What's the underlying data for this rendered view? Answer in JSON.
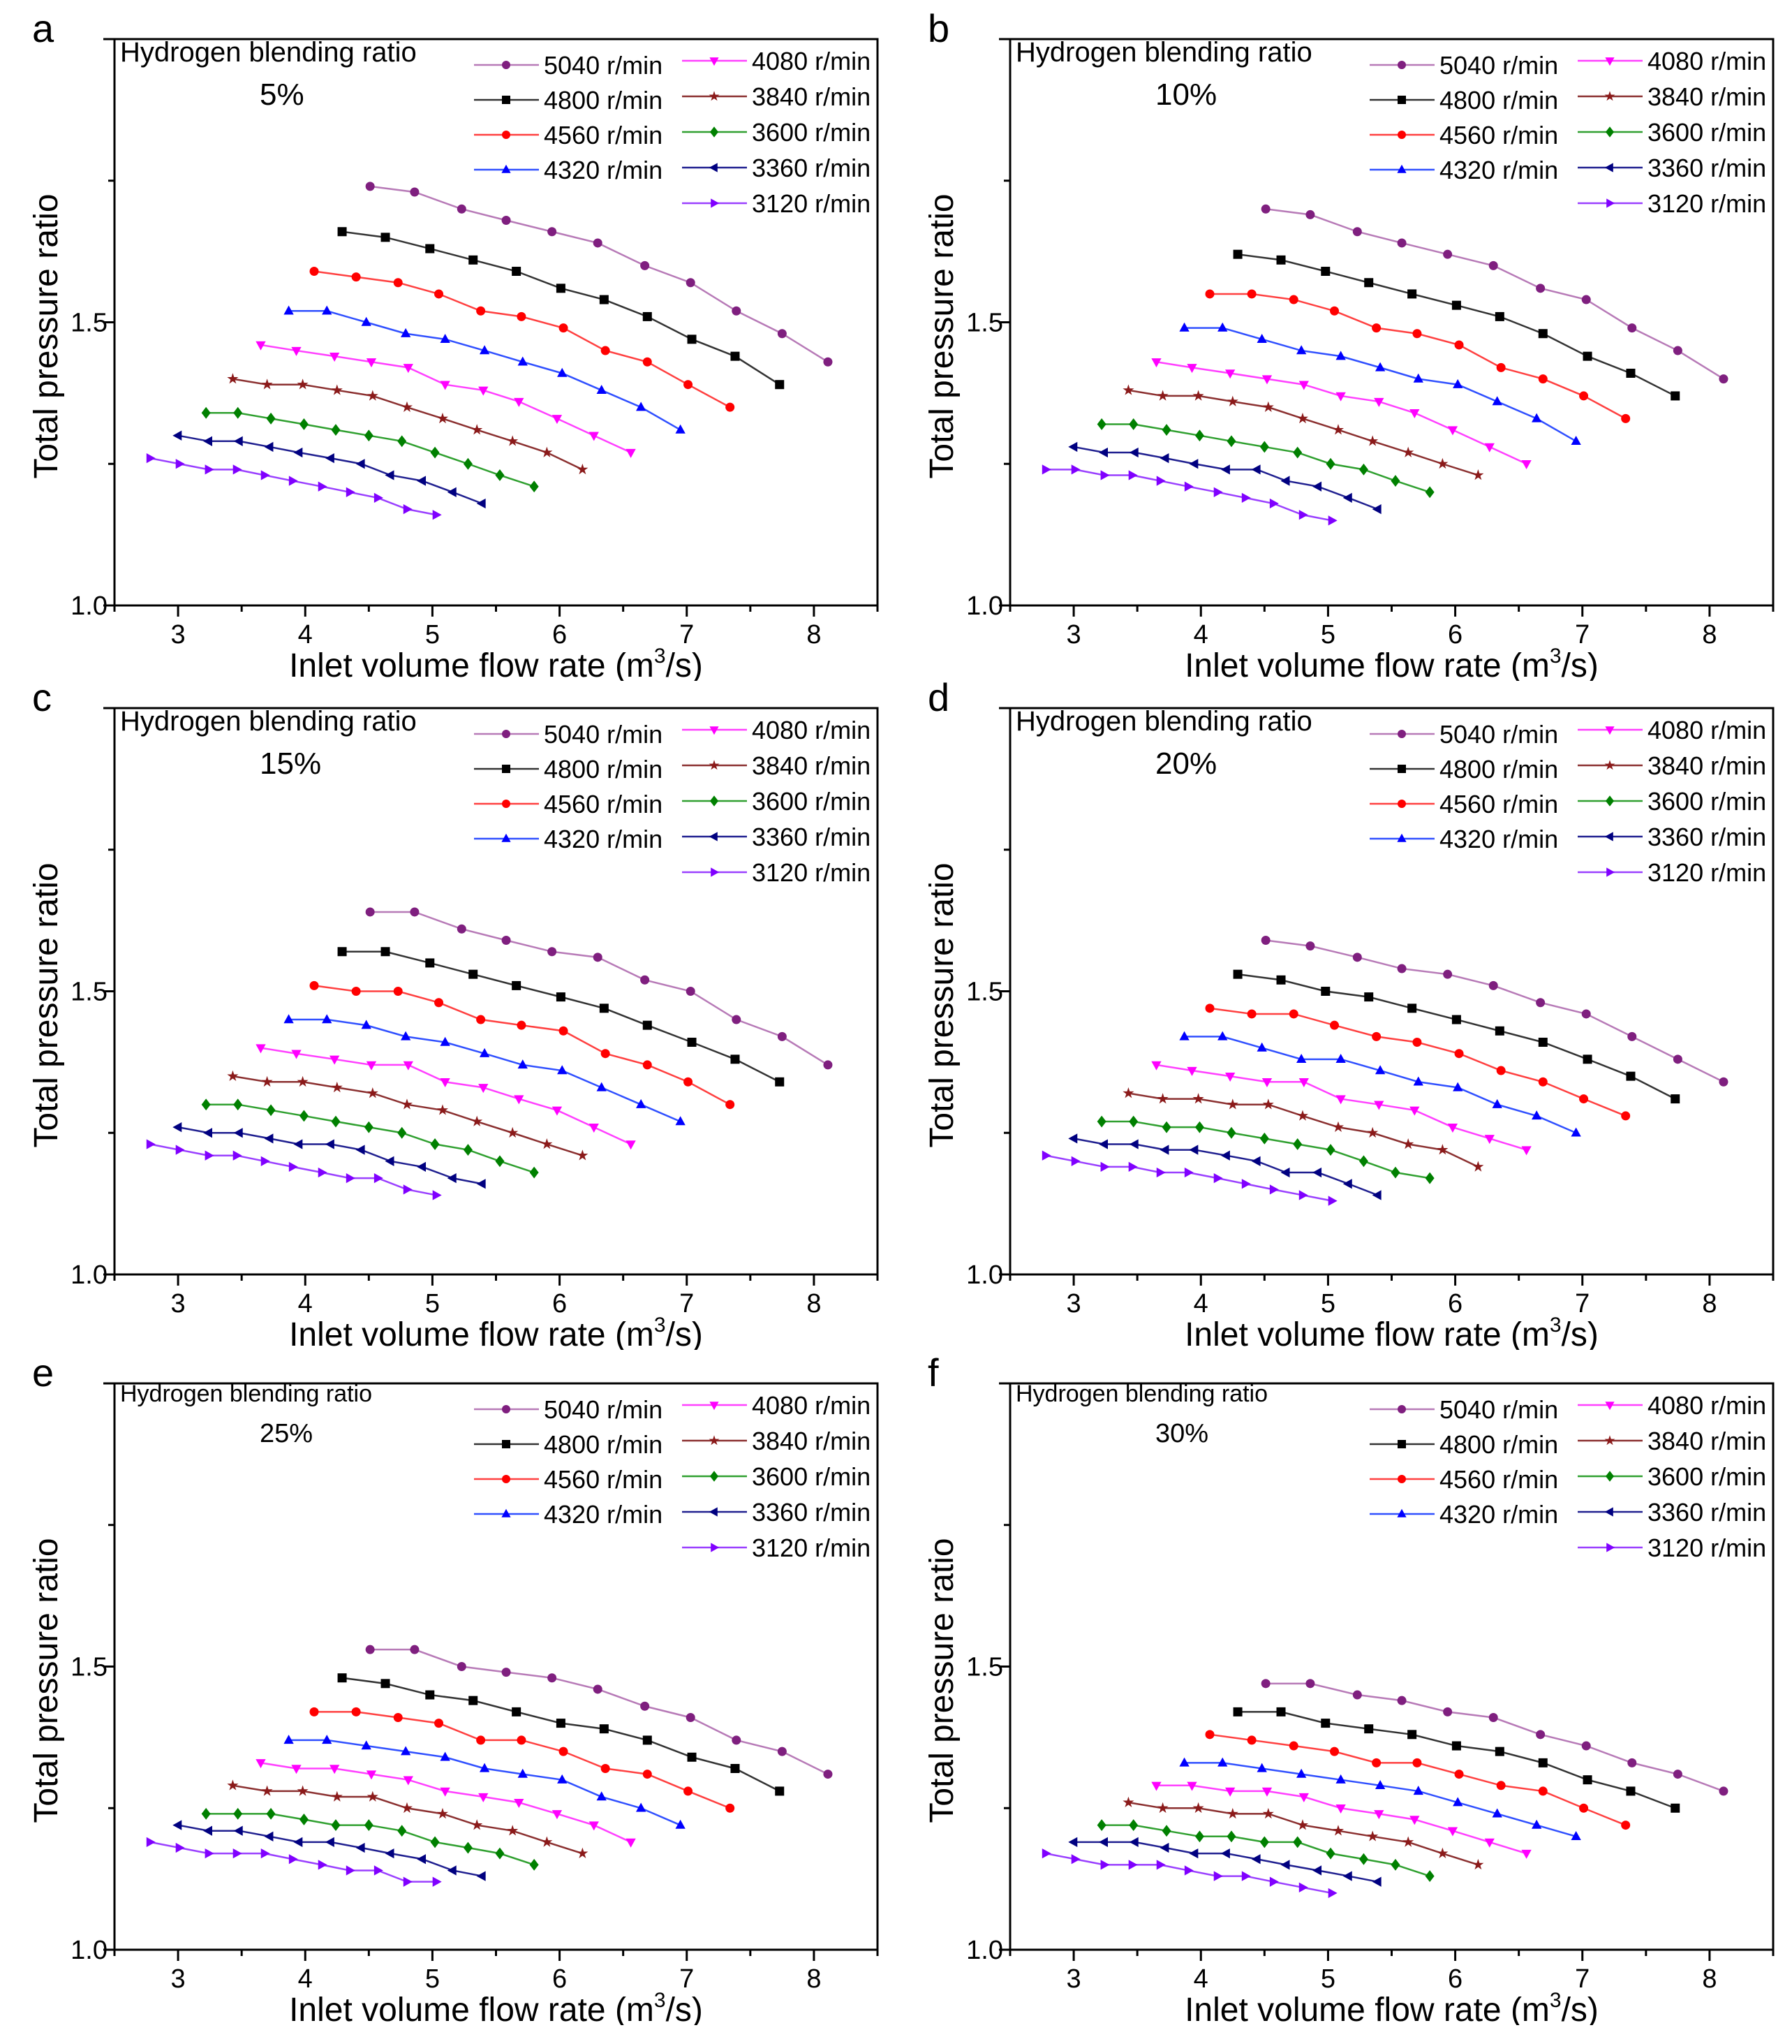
{
  "chart_data": {
    "type": "line",
    "xlabel_prefix": "Inlet volume flow rate (m",
    "xlabel_sup": "3",
    "xlabel_suffix": "/s)",
    "ylabel": "Total pressure ratio",
    "xlim": [
      2.5,
      8.5
    ],
    "ylim": [
      1.0,
      2.0
    ],
    "xticks": [
      "3",
      "4",
      "5",
      "6",
      "7",
      "8"
    ],
    "xtick_values": [
      3,
      4,
      5,
      6,
      7,
      8
    ],
    "yticks": [
      "1.0",
      "1.5"
    ],
    "ytick_values": [
      1.0,
      1.5
    ],
    "title_prefix": "Hydrogen blending ratio",
    "series_meta": [
      {
        "name": "5040 r/min",
        "color": "#7f1f7f",
        "line": "#b77ab7",
        "marker": "circle",
        "x": [
          4.51,
          4.86,
          5.23,
          5.58,
          5.94,
          6.3,
          6.67,
          7.03,
          7.39,
          7.75,
          8.11
        ]
      },
      {
        "name": "4800 r/min",
        "color": "#000000",
        "line": "#333333",
        "marker": "square",
        "x": [
          4.29,
          4.63,
          4.98,
          5.32,
          5.66,
          6.01,
          6.35,
          6.69,
          7.04,
          7.38,
          7.73
        ]
      },
      {
        "name": "4560 r/min",
        "color": "#ff0000",
        "line": "#ff4040",
        "marker": "circle",
        "x": [
          4.07,
          4.4,
          4.73,
          5.05,
          5.38,
          5.7,
          6.03,
          6.36,
          6.69,
          7.01,
          7.34
        ]
      },
      {
        "name": "4320 r/min",
        "color": "#0000ff",
        "line": "#3050ff",
        "marker": "triangle-up",
        "x": [
          3.87,
          4.17,
          4.48,
          4.79,
          5.1,
          5.41,
          5.71,
          6.02,
          6.33,
          6.64,
          6.95
        ]
      },
      {
        "name": "4080 r/min",
        "color": "#ff00ff",
        "line": "#ff40ff",
        "marker": "triangle-down",
        "x": [
          3.65,
          3.93,
          4.23,
          4.52,
          4.81,
          5.1,
          5.4,
          5.68,
          5.98,
          6.27,
          6.56
        ]
      },
      {
        "name": "3840 r/min",
        "color": "#8b1a1a",
        "line": "#8b3030",
        "marker": "star",
        "x": [
          3.43,
          3.7,
          3.98,
          4.25,
          4.53,
          4.8,
          5.08,
          5.35,
          5.63,
          5.9,
          6.18
        ]
      },
      {
        "name": "3600 r/min",
        "color": "#008000",
        "line": "#30a030",
        "marker": "diamond",
        "x": [
          3.22,
          3.47,
          3.73,
          3.99,
          4.24,
          4.5,
          4.76,
          5.02,
          5.28,
          5.53,
          5.8
        ]
      },
      {
        "name": "3360 r/min",
        "color": "#000080",
        "line": "#202090",
        "marker": "triangle-left",
        "x": [
          3.0,
          3.24,
          3.48,
          3.72,
          3.95,
          4.2,
          4.44,
          4.67,
          4.92,
          5.16,
          5.39
        ]
      },
      {
        "name": "3120 r/min",
        "color": "#8000ff",
        "line": "#9a40ff",
        "marker": "triangle-right",
        "x": [
          2.78,
          3.01,
          3.24,
          3.46,
          3.68,
          3.9,
          4.13,
          4.35,
          4.57,
          4.8,
          5.03
        ]
      }
    ],
    "panels": [
      {
        "letter": "a",
        "ratio": "5%",
        "y": [
          [
            1.74,
            1.73,
            1.7,
            1.68,
            1.66,
            1.64,
            1.6,
            1.57,
            1.52,
            1.48,
            1.43
          ],
          [
            1.66,
            1.65,
            1.63,
            1.61,
            1.59,
            1.56,
            1.54,
            1.51,
            1.47,
            1.44,
            1.39
          ],
          [
            1.59,
            1.58,
            1.57,
            1.55,
            1.52,
            1.51,
            1.49,
            1.45,
            1.43,
            1.39,
            1.35
          ],
          [
            1.52,
            1.52,
            1.5,
            1.48,
            1.47,
            1.45,
            1.43,
            1.41,
            1.38,
            1.35,
            1.31
          ],
          [
            1.46,
            1.45,
            1.44,
            1.43,
            1.42,
            1.39,
            1.38,
            1.36,
            1.33,
            1.3,
            1.27
          ],
          [
            1.4,
            1.39,
            1.39,
            1.38,
            1.37,
            1.35,
            1.33,
            1.31,
            1.29,
            1.27,
            1.24
          ],
          [
            1.34,
            1.34,
            1.33,
            1.32,
            1.31,
            1.3,
            1.29,
            1.27,
            1.25,
            1.23,
            1.21
          ],
          [
            1.3,
            1.29,
            1.29,
            1.28,
            1.27,
            1.26,
            1.25,
            1.23,
            1.22,
            1.2,
            1.18
          ],
          [
            1.26,
            1.25,
            1.24,
            1.24,
            1.23,
            1.22,
            1.21,
            1.2,
            1.19,
            1.17,
            1.16
          ]
        ]
      },
      {
        "letter": "b",
        "ratio": "10%",
        "y": [
          [
            1.7,
            1.69,
            1.66,
            1.64,
            1.62,
            1.6,
            1.56,
            1.54,
            1.49,
            1.45,
            1.4
          ],
          [
            1.62,
            1.61,
            1.59,
            1.57,
            1.55,
            1.53,
            1.51,
            1.48,
            1.44,
            1.41,
            1.37
          ],
          [
            1.55,
            1.55,
            1.54,
            1.52,
            1.49,
            1.48,
            1.46,
            1.42,
            1.4,
            1.37,
            1.33
          ],
          [
            1.49,
            1.49,
            1.47,
            1.45,
            1.44,
            1.42,
            1.4,
            1.39,
            1.36,
            1.33,
            1.29
          ],
          [
            1.43,
            1.42,
            1.41,
            1.4,
            1.39,
            1.37,
            1.36,
            1.34,
            1.31,
            1.28,
            1.25
          ],
          [
            1.38,
            1.37,
            1.37,
            1.36,
            1.35,
            1.33,
            1.31,
            1.29,
            1.27,
            1.25,
            1.23
          ],
          [
            1.32,
            1.32,
            1.31,
            1.3,
            1.29,
            1.28,
            1.27,
            1.25,
            1.24,
            1.22,
            1.2
          ],
          [
            1.28,
            1.27,
            1.27,
            1.26,
            1.25,
            1.24,
            1.24,
            1.22,
            1.21,
            1.19,
            1.17
          ],
          [
            1.24,
            1.24,
            1.23,
            1.23,
            1.22,
            1.21,
            1.2,
            1.19,
            1.18,
            1.16,
            1.15
          ]
        ]
      },
      {
        "letter": "c",
        "ratio": "15%",
        "y": [
          [
            1.64,
            1.64,
            1.61,
            1.59,
            1.57,
            1.56,
            1.52,
            1.5,
            1.45,
            1.42,
            1.37
          ],
          [
            1.57,
            1.57,
            1.55,
            1.53,
            1.51,
            1.49,
            1.47,
            1.44,
            1.41,
            1.38,
            1.34
          ],
          [
            1.51,
            1.5,
            1.5,
            1.48,
            1.45,
            1.44,
            1.43,
            1.39,
            1.37,
            1.34,
            1.3
          ],
          [
            1.45,
            1.45,
            1.44,
            1.42,
            1.41,
            1.39,
            1.37,
            1.36,
            1.33,
            1.3,
            1.27
          ],
          [
            1.4,
            1.39,
            1.38,
            1.37,
            1.37,
            1.34,
            1.33,
            1.31,
            1.29,
            1.26,
            1.23
          ],
          [
            1.35,
            1.34,
            1.34,
            1.33,
            1.32,
            1.3,
            1.29,
            1.27,
            1.25,
            1.23,
            1.21
          ],
          [
            1.3,
            1.3,
            1.29,
            1.28,
            1.27,
            1.26,
            1.25,
            1.23,
            1.22,
            1.2,
            1.18
          ],
          [
            1.26,
            1.25,
            1.25,
            1.24,
            1.23,
            1.23,
            1.22,
            1.2,
            1.19,
            1.17,
            1.16
          ],
          [
            1.23,
            1.22,
            1.21,
            1.21,
            1.2,
            1.19,
            1.18,
            1.17,
            1.17,
            1.15,
            1.14
          ]
        ]
      },
      {
        "letter": "d",
        "ratio": "20%",
        "y": [
          [
            1.59,
            1.58,
            1.56,
            1.54,
            1.53,
            1.51,
            1.48,
            1.46,
            1.42,
            1.38,
            1.34
          ],
          [
            1.53,
            1.52,
            1.5,
            1.49,
            1.47,
            1.45,
            1.43,
            1.41,
            1.38,
            1.35,
            1.31
          ],
          [
            1.47,
            1.46,
            1.46,
            1.44,
            1.42,
            1.41,
            1.39,
            1.36,
            1.34,
            1.31,
            1.28
          ],
          [
            1.42,
            1.42,
            1.4,
            1.38,
            1.38,
            1.36,
            1.34,
            1.33,
            1.3,
            1.28,
            1.25
          ],
          [
            1.37,
            1.36,
            1.35,
            1.34,
            1.34,
            1.31,
            1.3,
            1.29,
            1.26,
            1.24,
            1.22
          ],
          [
            1.32,
            1.31,
            1.31,
            1.3,
            1.3,
            1.28,
            1.26,
            1.25,
            1.23,
            1.22,
            1.19
          ],
          [
            1.27,
            1.27,
            1.26,
            1.26,
            1.25,
            1.24,
            1.23,
            1.22,
            1.2,
            1.18,
            1.17
          ],
          [
            1.24,
            1.23,
            1.23,
            1.22,
            1.22,
            1.21,
            1.2,
            1.18,
            1.18,
            1.16,
            1.14
          ],
          [
            1.21,
            1.2,
            1.19,
            1.19,
            1.18,
            1.18,
            1.17,
            1.16,
            1.15,
            1.14,
            1.13
          ]
        ]
      },
      {
        "letter": "e",
        "ratio": "25%",
        "y": [
          [
            1.53,
            1.53,
            1.5,
            1.49,
            1.48,
            1.46,
            1.43,
            1.41,
            1.37,
            1.35,
            1.31
          ],
          [
            1.48,
            1.47,
            1.45,
            1.44,
            1.42,
            1.4,
            1.39,
            1.37,
            1.34,
            1.32,
            1.28
          ],
          [
            1.42,
            1.42,
            1.41,
            1.4,
            1.37,
            1.37,
            1.35,
            1.32,
            1.31,
            1.28,
            1.25
          ],
          [
            1.37,
            1.37,
            1.36,
            1.35,
            1.34,
            1.32,
            1.31,
            1.3,
            1.27,
            1.25,
            1.22
          ],
          [
            1.33,
            1.32,
            1.32,
            1.31,
            1.3,
            1.28,
            1.27,
            1.26,
            1.24,
            1.22,
            1.19
          ],
          [
            1.29,
            1.28,
            1.28,
            1.27,
            1.27,
            1.25,
            1.24,
            1.22,
            1.21,
            1.19,
            1.17
          ],
          [
            1.24,
            1.24,
            1.24,
            1.23,
            1.22,
            1.22,
            1.21,
            1.19,
            1.18,
            1.17,
            1.15
          ],
          [
            1.22,
            1.21,
            1.21,
            1.2,
            1.19,
            1.19,
            1.18,
            1.17,
            1.16,
            1.14,
            1.13
          ],
          [
            1.19,
            1.18,
            1.17,
            1.17,
            1.17,
            1.16,
            1.15,
            1.14,
            1.14,
            1.12,
            1.12
          ]
        ]
      },
      {
        "letter": "f",
        "ratio": "30%",
        "y": [
          [
            1.47,
            1.47,
            1.45,
            1.44,
            1.42,
            1.41,
            1.38,
            1.36,
            1.33,
            1.31,
            1.28
          ],
          [
            1.42,
            1.42,
            1.4,
            1.39,
            1.38,
            1.36,
            1.35,
            1.33,
            1.3,
            1.28,
            1.25
          ],
          [
            1.38,
            1.37,
            1.36,
            1.35,
            1.33,
            1.33,
            1.31,
            1.29,
            1.28,
            1.25,
            1.22
          ],
          [
            1.33,
            1.33,
            1.32,
            1.31,
            1.3,
            1.29,
            1.28,
            1.26,
            1.24,
            1.22,
            1.2
          ],
          [
            1.29,
            1.29,
            1.28,
            1.28,
            1.27,
            1.25,
            1.24,
            1.23,
            1.21,
            1.19,
            1.17
          ],
          [
            1.26,
            1.25,
            1.25,
            1.24,
            1.24,
            1.22,
            1.21,
            1.2,
            1.19,
            1.17,
            1.15
          ],
          [
            1.22,
            1.22,
            1.21,
            1.2,
            1.2,
            1.19,
            1.19,
            1.17,
            1.16,
            1.15,
            1.13
          ],
          [
            1.19,
            1.19,
            1.19,
            1.18,
            1.17,
            1.17,
            1.16,
            1.15,
            1.14,
            1.13,
            1.12
          ],
          [
            1.17,
            1.16,
            1.15,
            1.15,
            1.15,
            1.14,
            1.13,
            1.13,
            1.12,
            1.11,
            1.1
          ]
        ]
      }
    ]
  }
}
